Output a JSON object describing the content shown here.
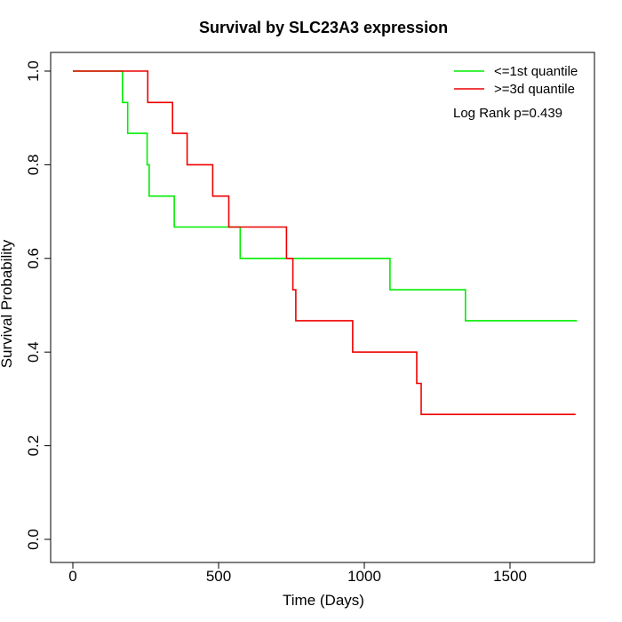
{
  "chart_data": {
    "type": "line",
    "step": true,
    "title": "Survival by SLC23A3 expression",
    "xlabel": "Time (Days)",
    "ylabel": "Survival Probability",
    "xlim": [
      0,
      1750
    ],
    "ylim": [
      0,
      1
    ],
    "xticks": [
      0,
      500,
      1000,
      1500
    ],
    "yticks": [
      0.0,
      0.2,
      0.4,
      0.6,
      0.8,
      1.0
    ],
    "xtick_labels": [
      "0",
      "500",
      "1000",
      "1500"
    ],
    "ytick_labels": [
      "0.0",
      "0.2",
      "0.4",
      "0.6",
      "0.8",
      "1.0"
    ],
    "grid": false,
    "legend_position": "top-right",
    "annotation": "Log Rank p=0.439",
    "series": [
      {
        "name": "<=1st quantile",
        "color": "#00ee00",
        "points": [
          [
            0,
            1.0
          ],
          [
            170,
            1.0
          ],
          [
            170,
            0.933
          ],
          [
            188,
            0.933
          ],
          [
            188,
            0.867
          ],
          [
            255,
            0.867
          ],
          [
            255,
            0.8
          ],
          [
            262,
            0.8
          ],
          [
            262,
            0.733
          ],
          [
            348,
            0.733
          ],
          [
            348,
            0.667
          ],
          [
            574,
            0.667
          ],
          [
            574,
            0.6
          ],
          [
            1088,
            0.6
          ],
          [
            1088,
            0.533
          ],
          [
            1347,
            0.533
          ],
          [
            1347,
            0.467
          ],
          [
            1730,
            0.467
          ]
        ]
      },
      {
        "name": ">=3d quantile",
        "color": "#ee0000",
        "points": [
          [
            0,
            1.0
          ],
          [
            257,
            1.0
          ],
          [
            257,
            0.933
          ],
          [
            342,
            0.933
          ],
          [
            342,
            0.867
          ],
          [
            392,
            0.867
          ],
          [
            392,
            0.8
          ],
          [
            480,
            0.8
          ],
          [
            480,
            0.733
          ],
          [
            535,
            0.733
          ],
          [
            535,
            0.667
          ],
          [
            733,
            0.667
          ],
          [
            733,
            0.6
          ],
          [
            755,
            0.6
          ],
          [
            755,
            0.533
          ],
          [
            765,
            0.533
          ],
          [
            765,
            0.467
          ],
          [
            960,
            0.467
          ],
          [
            960,
            0.4
          ],
          [
            1180,
            0.4
          ],
          [
            1180,
            0.333
          ],
          [
            1195,
            0.333
          ],
          [
            1195,
            0.267
          ],
          [
            1725,
            0.267
          ]
        ]
      }
    ]
  }
}
